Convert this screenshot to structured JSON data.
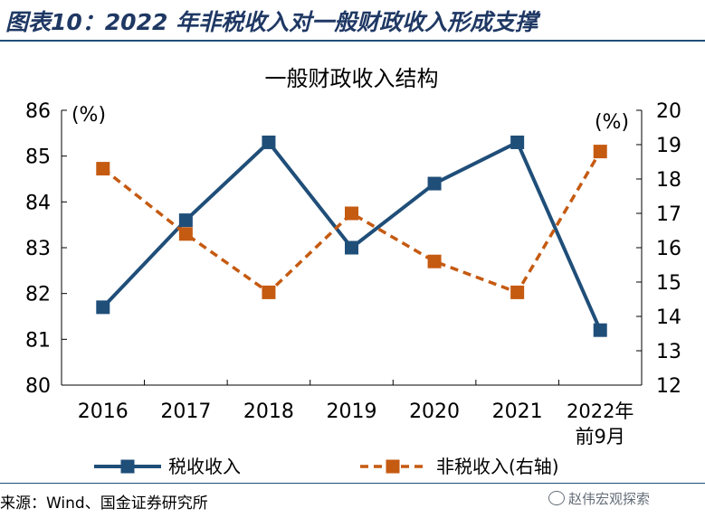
{
  "figure": {
    "title": "图表10：2022 年非税收入对一般财政收入形成支撑",
    "source": "来源：Wind、国金证券研究所",
    "watermark": "赵伟宏观探索"
  },
  "colors": {
    "header_rule": "#1f4e79",
    "title_text": "#1f3864",
    "series_tax": "#1f4e79",
    "series_nontax": "#c55a11"
  },
  "chart_data": {
    "type": "line",
    "title": "一般财政收入结构",
    "categories": [
      "2016",
      "2017",
      "2018",
      "2019",
      "2020",
      "2021",
      "2022年前9月"
    ],
    "y_left": {
      "unit_label": "(%)",
      "range": [
        80,
        86
      ],
      "ticks": [
        80,
        81,
        82,
        83,
        84,
        85,
        86
      ]
    },
    "y_right": {
      "unit_label": "(%)",
      "range": [
        12,
        20
      ],
      "ticks": [
        12,
        13,
        14,
        15,
        16,
        17,
        18,
        19,
        20
      ]
    },
    "series": [
      {
        "name": "税收收入",
        "axis": "left",
        "style": "solid",
        "marker": "square",
        "values": [
          81.7,
          83.6,
          85.3,
          83.0,
          84.4,
          85.3,
          81.2
        ]
      },
      {
        "name": "非税收入(右轴)",
        "axis": "right",
        "style": "dashed",
        "marker": "square",
        "values": [
          18.3,
          16.4,
          14.7,
          17.0,
          15.6,
          14.7,
          18.8
        ]
      }
    ],
    "grid": false,
    "legend_position": "bottom"
  }
}
